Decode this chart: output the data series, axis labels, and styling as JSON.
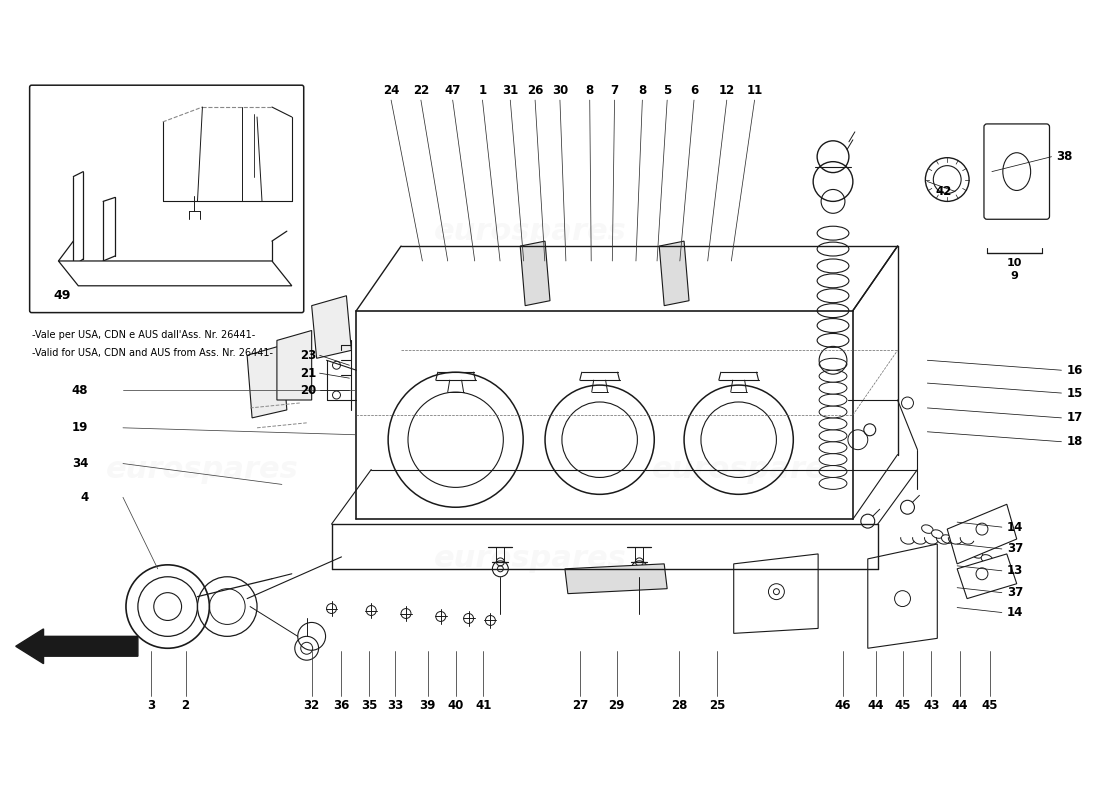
{
  "bg_color": "#ffffff",
  "line_color": "#1a1a1a",
  "lw_main": 1.0,
  "lw_thin": 0.6,
  "lw_leader": 0.55,
  "fig_width": 11.0,
  "fig_height": 8.0,
  "dpi": 100,
  "note_text_it": "-Vale per USA, CDN e AUS dall'Ass. Nr. 26441-",
  "note_text_en": "-Valid for USA, CDN and AUS from Ass. Nr. 26441-",
  "watermark_text": "eurospares",
  "top_labels": [
    [
      390,
      88,
      "24"
    ],
    [
      420,
      88,
      "22"
    ],
    [
      452,
      88,
      "47"
    ],
    [
      482,
      88,
      "1"
    ],
    [
      510,
      88,
      "31"
    ],
    [
      535,
      88,
      "26"
    ],
    [
      560,
      88,
      "30"
    ],
    [
      590,
      88,
      "8"
    ],
    [
      615,
      88,
      "7"
    ],
    [
      643,
      88,
      "8"
    ],
    [
      668,
      88,
      "5"
    ],
    [
      695,
      88,
      "6"
    ],
    [
      728,
      88,
      "12"
    ],
    [
      756,
      88,
      "11"
    ]
  ],
  "right_labels": [
    [
      1015,
      190,
      "42"
    ],
    [
      1060,
      248,
      "10"
    ],
    [
      1060,
      262,
      "9"
    ],
    [
      1070,
      155,
      "38"
    ],
    [
      1070,
      370,
      "16"
    ],
    [
      1070,
      393,
      "15"
    ],
    [
      1070,
      418,
      "17"
    ],
    [
      1070,
      442,
      "18"
    ]
  ],
  "left_labels": [
    [
      95,
      390,
      "48"
    ],
    [
      95,
      430,
      "19"
    ],
    [
      95,
      465,
      "34"
    ],
    [
      95,
      498,
      "4"
    ],
    [
      300,
      355,
      "23"
    ],
    [
      300,
      375,
      "21"
    ],
    [
      300,
      392,
      "20"
    ]
  ],
  "bottom_labels": [
    [
      148,
      708,
      "3"
    ],
    [
      183,
      708,
      "2"
    ],
    [
      310,
      708,
      "32"
    ],
    [
      340,
      708,
      "36"
    ],
    [
      368,
      708,
      "35"
    ],
    [
      394,
      708,
      "33"
    ],
    [
      427,
      708,
      "39"
    ],
    [
      455,
      708,
      "40"
    ],
    [
      483,
      708,
      "41"
    ],
    [
      580,
      708,
      "27"
    ],
    [
      617,
      708,
      "29"
    ],
    [
      680,
      708,
      "28"
    ],
    [
      718,
      708,
      "25"
    ],
    [
      845,
      708,
      "46"
    ],
    [
      878,
      708,
      "44"
    ],
    [
      905,
      708,
      "45"
    ],
    [
      934,
      708,
      "43"
    ],
    [
      963,
      708,
      "44"
    ],
    [
      993,
      708,
      "45"
    ]
  ],
  "mid_right_labels": [
    [
      1010,
      528,
      "14"
    ],
    [
      1010,
      550,
      "37"
    ],
    [
      1010,
      572,
      "13"
    ],
    [
      1010,
      594,
      "37"
    ],
    [
      1010,
      614,
      "14"
    ]
  ]
}
